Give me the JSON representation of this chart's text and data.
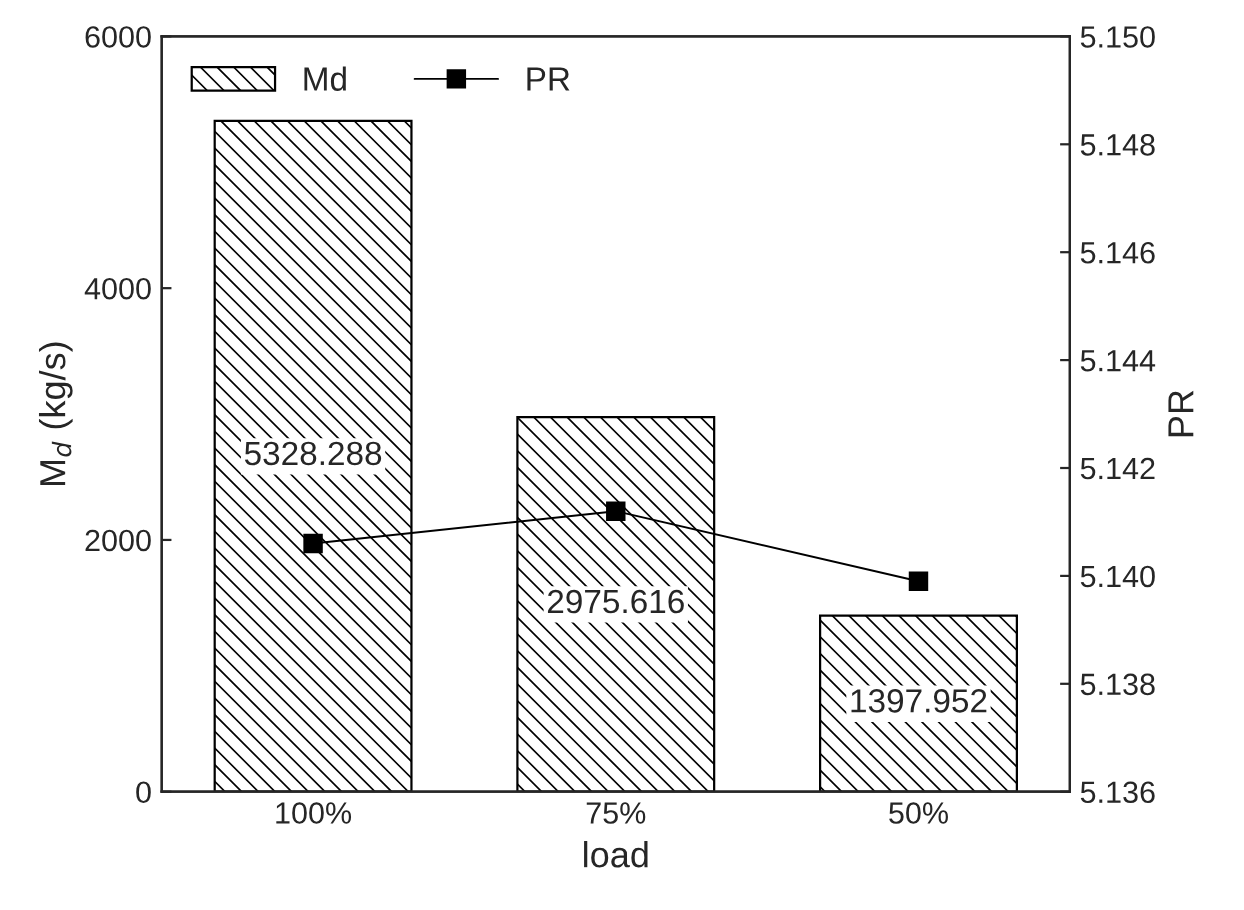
{
  "chart_data": {
    "type": "bar",
    "categories": [
      "100%",
      "75%",
      "50%"
    ],
    "xlabel": "load",
    "ylabel": "M$_{d}$ (kg/s)",
    "y2label": "PR",
    "series": [
      {
        "name": "Md",
        "color": "#000000",
        "values": [
          5328.288,
          2975.616,
          1397.952
        ],
        "value_labels": [
          "5328.288",
          "2975.616",
          "1397.952"
        ]
      },
      {
        "name": "PR",
        "type": "line",
        "axis": "y2",
        "color": "#000000",
        "values": [
          5.1406,
          5.1412,
          5.1399
        ],
        "marker": "square",
        "line_style": "solid"
      }
    ],
    "ylim": [
      0,
      6000
    ],
    "yticks": [
      0,
      2000,
      4000,
      6000
    ],
    "y2lim": [
      5.136,
      5.15
    ],
    "y2ticks": [
      5.136,
      5.138,
      {
        "value": 5.14,
        "label": "5.140"
      },
      5.142,
      5.144,
      5.146,
      5.148,
      {
        "value": 5.15,
        "label": "5.150"
      }
    ],
    "grid": false,
    "legend": "top left"
  }
}
